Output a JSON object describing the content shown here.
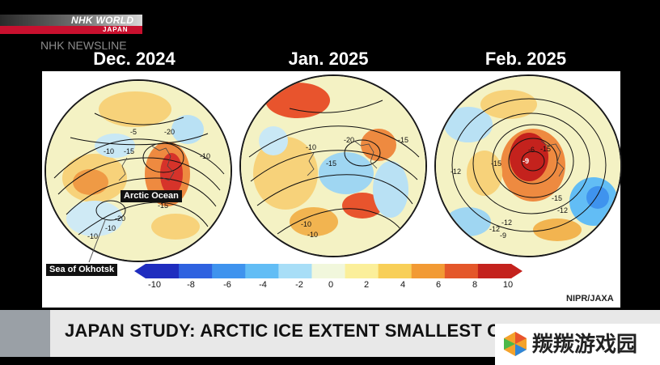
{
  "broadcaster": {
    "logo_line1": "NHK WORLD",
    "logo_line2": "JAPAN",
    "program": "NHK NEWSLINE"
  },
  "maps": [
    {
      "title": "Dec. 2024",
      "labels": [
        "-5",
        "-20",
        "-10",
        "-15",
        "-10",
        "-15",
        "-20",
        "-10",
        "-10"
      ]
    },
    {
      "title": "Jan. 2025",
      "labels": [
        "-10",
        "-20",
        "-15",
        "-15",
        "-10",
        "-10"
      ]
    },
    {
      "title": "Feb. 2025",
      "labels": [
        "-15",
        "-9",
        "-12",
        "-15",
        "-12",
        "-15",
        "-12",
        "-12",
        "-9",
        "-6"
      ]
    }
  ],
  "callouts": {
    "arctic_ocean": "Arctic Ocean",
    "sea_of_okhotsk": "Sea of Okhotsk"
  },
  "colorbar": {
    "ticks": [
      "-10",
      "-8",
      "-6",
      "-4",
      "-2",
      "0",
      "2",
      "4",
      "6",
      "8",
      "10"
    ],
    "colors": [
      "#1f2dbf",
      "#2f62e0",
      "#3f93ee",
      "#62bdf5",
      "#a8def7",
      "#f1f7dc",
      "#fbef9a",
      "#f8cf58",
      "#f29a34",
      "#e4572a",
      "#c4221d"
    ]
  },
  "credit": "NIPR/JAXA",
  "headline": "JAPAN STUDY: ARCTIC ICE EXTENT SMALLEST ON RECORD",
  "watermark": "羰羰游戏园"
}
